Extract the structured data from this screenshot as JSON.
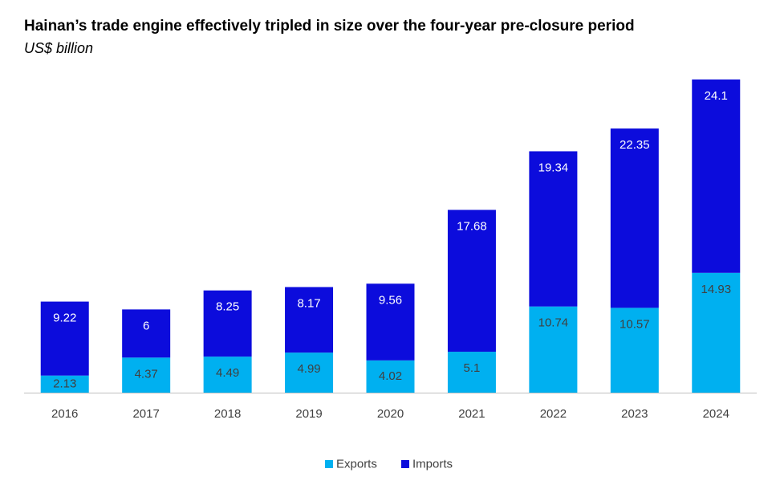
{
  "chart_data": {
    "type": "stacked-bar",
    "title": "Hainan’s trade engine effectively tripled in size over the four-year pre-closure period",
    "subtitle": "US$ billion",
    "categories": [
      "2016",
      "2017",
      "2018",
      "2019",
      "2020",
      "2021",
      "2022",
      "2023",
      "2024"
    ],
    "series": [
      {
        "name": "Exports",
        "color": "#00b0f0",
        "values": [
          2.13,
          4.37,
          4.49,
          4.99,
          4.02,
          5.1,
          10.74,
          10.57,
          14.93
        ]
      },
      {
        "name": "Imports",
        "color": "#0c0cdc",
        "values": [
          9.22,
          6,
          8.25,
          8.17,
          9.56,
          17.68,
          19.34,
          22.35,
          24.1
        ]
      }
    ],
    "legend": "bottom"
  }
}
